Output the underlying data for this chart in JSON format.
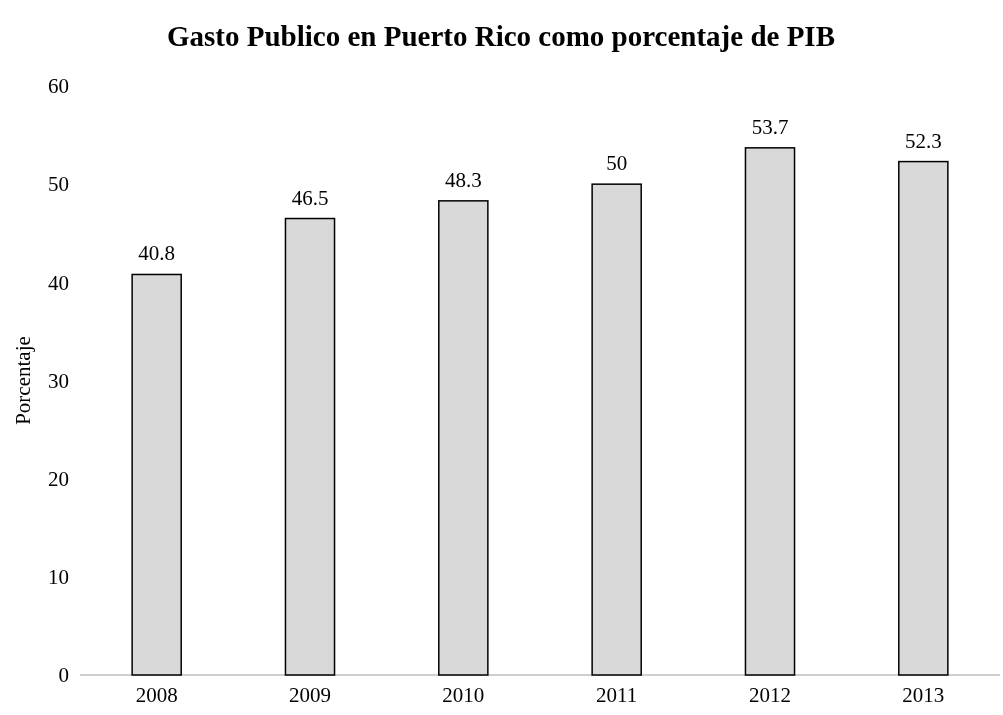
{
  "chart_data": {
    "type": "bar",
    "title": "Gasto Publico en Puerto Rico como porcentaje de PIB",
    "ylabel": "Porcentaje",
    "categories": [
      "2008",
      "2009",
      "2010",
      "2011",
      "2012",
      "2013"
    ],
    "values": [
      40.8,
      46.5,
      48.3,
      50,
      53.7,
      52.3
    ],
    "color": "#d9d9d9",
    "ylim": [
      0,
      60
    ],
    "yticks": [
      0,
      10,
      20,
      30,
      40,
      50,
      60
    ],
    "grid": false,
    "data_labels": true
  }
}
